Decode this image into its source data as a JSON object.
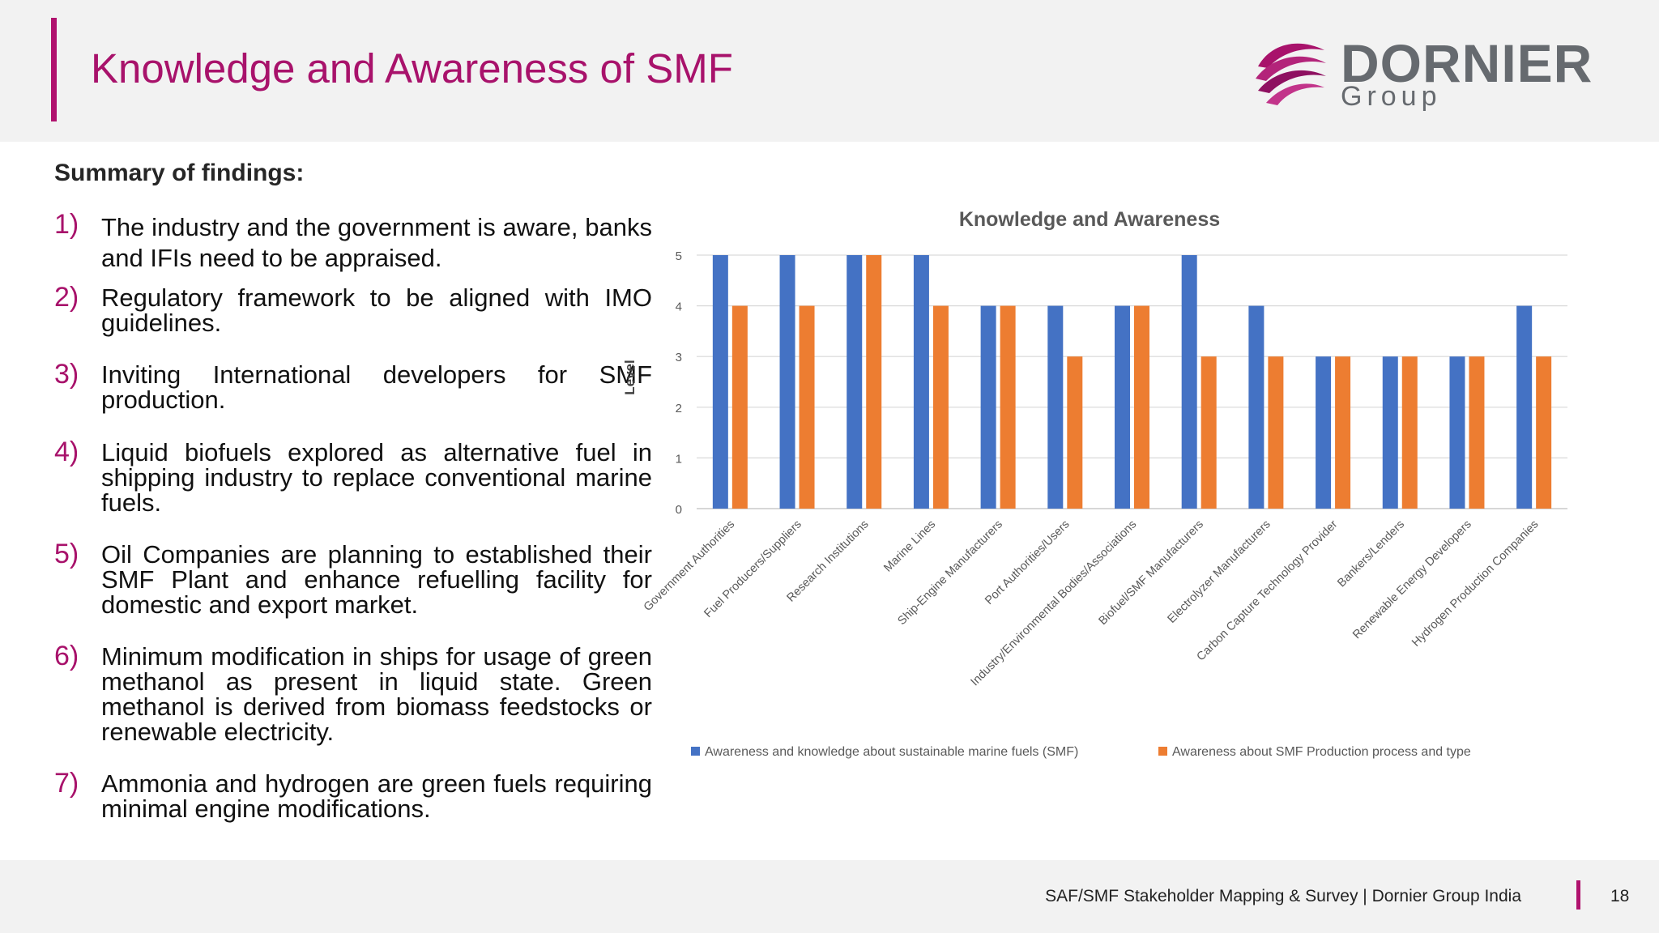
{
  "header": {
    "title": "Knowledge and Awareness of SMF",
    "logo_word": "DORNIER",
    "logo_sub": "Group"
  },
  "summary": {
    "heading": "Summary of findings:",
    "items": [
      {
        "num": "1)",
        "text": "The industry and the government is aware, banks and IFIs need to be appraised."
      },
      {
        "num": "2)",
        "text": "Regulatory framework to be aligned with IMO guidelines."
      },
      {
        "num": "3)",
        "text": "Inviting International developers for SMF production."
      },
      {
        "num": "4)",
        "text": "Liquid biofuels explored as alternative fuel in shipping industry to replace conventional marine fuels."
      },
      {
        "num": "5)",
        "text": "Oil Companies are planning to established their SMF Plant and enhance refuelling facility for domestic and export market."
      },
      {
        "num": "6)",
        "text": "Minimum modification in ships for usage of green methanol as present in liquid state. Green methanol is derived from biomass feedstocks or renewable electricity."
      },
      {
        "num": "7)",
        "text": "Ammonia and hydrogen are green fuels requiring minimal engine modifications."
      }
    ]
  },
  "chart_data": {
    "type": "bar",
    "title": "Knowledge and Awareness",
    "xlabel": "",
    "ylabel": "Level",
    "ylim": [
      0,
      5
    ],
    "yticks": [
      "0",
      "1",
      "2",
      "3",
      "4",
      "5"
    ],
    "grid": true,
    "legend_position": "bottom",
    "categories": [
      "Government Authorities",
      "Fuel Producers/Suppliers",
      "Research Institutions",
      "Marine Lines",
      "Ship-Engine Manufacturers",
      "Port Authorities/Users",
      "Industry/Environmental Bodies/Associations",
      "Biofuel/SMF Manufacturers",
      "Electrolyzer Manufacturers",
      "Carbon Capture Technology Provider",
      "Bankers/Lenders",
      "Renewable Energy Developers",
      "Hydrogen Production Companies"
    ],
    "series": [
      {
        "name": "Awareness and knowledge about sustainable marine fuels (SMF)",
        "color": "#4472c4",
        "values": [
          5,
          5,
          5,
          5,
          4,
          4,
          4,
          5,
          4,
          3,
          3,
          3,
          4
        ]
      },
      {
        "name": "Awareness about SMF Production process and type",
        "color": "#ed7d31",
        "values": [
          4,
          4,
          5,
          4,
          4,
          3,
          4,
          3,
          3,
          3,
          3,
          3,
          3
        ]
      }
    ]
  },
  "footer": {
    "text": "SAF/SMF Stakeholder Mapping & Survey | Dornier Group India",
    "page": "18"
  }
}
